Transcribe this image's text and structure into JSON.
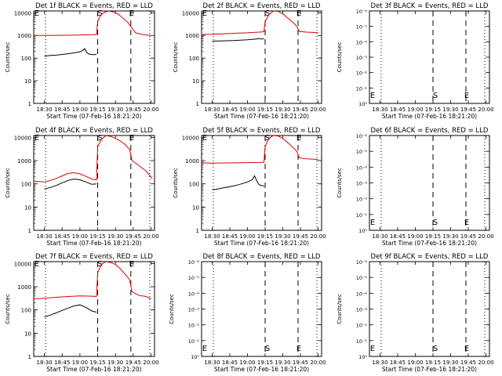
{
  "figure": {
    "colors": {
      "events": "#000000",
      "lld": "#dd0000",
      "axes": "#000000"
    },
    "time_ticks": [
      "18:30",
      "18:45",
      "19:00",
      "19:15",
      "19:30",
      "19:45",
      "20:00"
    ],
    "log_yticks": [
      "1",
      "10",
      "100",
      "1000",
      "10000"
    ],
    "tiny_yticks": [
      "10⁰",
      "10⁻¹",
      "10⁻²",
      "10⁻³",
      "10⁻⁴",
      "10⁻⁵",
      "10⁻⁶"
    ],
    "marker_labels": {
      "start": "E",
      "saa": "S",
      "end": "E"
    }
  },
  "chart_data": [
    {
      "type": "line",
      "detector": "1f",
      "title": "Det 1f BLACK = Events, RED = LLD",
      "xlabel": "Start Time (07-Feb-16 18:21:20)",
      "ylabel": "Counts/sec",
      "xlim": [
        "18:21",
        "20:03"
      ],
      "ylim": [
        1,
        12000
      ],
      "log_y": true,
      "empty": false,
      "markers": {
        "dotted": [
          "18:31",
          "19:59"
        ],
        "dashed": [
          "19:15",
          "19:43"
        ]
      },
      "series": [
        {
          "name": "Events",
          "color": "black",
          "x": [
            "18:30",
            "18:35",
            "18:40",
            "18:45",
            "18:50",
            "18:55",
            "19:00",
            "19:02",
            "19:04",
            "19:06",
            "19:08",
            "19:10",
            "19:12",
            "19:14"
          ],
          "y": [
            120,
            130,
            135,
            145,
            155,
            170,
            190,
            210,
            260,
            170,
            150,
            145,
            140,
            150
          ]
        },
        {
          "name": "LLD",
          "color": "red",
          "x": [
            "18:21",
            "18:30",
            "18:40",
            "18:50",
            "19:00",
            "19:05",
            "19:10",
            "19:14",
            "19:15",
            "19:17",
            "19:20",
            "19:24",
            "19:28",
            "19:32",
            "19:36",
            "19:40",
            "19:43",
            "19:47",
            "19:51",
            "19:56",
            "20:00"
          ],
          "y": [
            1000,
            1000,
            1010,
            1020,
            1050,
            1060,
            1080,
            1100,
            4000,
            7000,
            10000,
            12000,
            11000,
            9000,
            6000,
            4000,
            2500,
            1300,
            1150,
            1050,
            1000
          ]
        }
      ]
    },
    {
      "type": "line",
      "detector": "2f",
      "title": "Det 2f BLACK = Events, RED = LLD",
      "xlabel": "Start Time (07-Feb-16 18:21:20)",
      "ylabel": "Counts/sec",
      "xlim": [
        "18:21",
        "20:03"
      ],
      "ylim": [
        1,
        12000
      ],
      "log_y": true,
      "empty": false,
      "markers": {
        "dotted": [
          "18:31",
          "19:59"
        ],
        "dashed": [
          "19:15",
          "19:43"
        ]
      },
      "series": [
        {
          "name": "Events",
          "color": "black",
          "x": [
            "18:30",
            "18:40",
            "18:50",
            "19:00",
            "19:05",
            "19:08",
            "19:10",
            "19:12",
            "19:14"
          ],
          "y": [
            560,
            580,
            600,
            640,
            680,
            700,
            720,
            700,
            710
          ]
        },
        {
          "name": "LLD",
          "color": "red",
          "x": [
            "18:21",
            "18:30",
            "18:40",
            "18:50",
            "19:00",
            "19:05",
            "19:10",
            "19:14",
            "19:15",
            "19:18",
            "19:22",
            "19:26",
            "19:30",
            "19:34",
            "19:38",
            "19:42",
            "19:44",
            "19:50",
            "19:56",
            "20:00"
          ],
          "y": [
            1100,
            1120,
            1180,
            1250,
            1300,
            1350,
            1400,
            1450,
            4000,
            8000,
            12000,
            11500,
            9000,
            6000,
            4000,
            2500,
            1500,
            1400,
            1350,
            1300
          ]
        }
      ]
    },
    {
      "type": "line",
      "detector": "3f",
      "title": "Det 3f BLACK = Events, RED = LLD",
      "xlabel": "Start Time (07-Feb-16 18:21:20)",
      "ylabel": "Counts/sec",
      "xlim": [
        "18:21",
        "20:03"
      ],
      "ylim": [
        1e-06,
        1
      ],
      "log_y": true,
      "empty": true,
      "markers": {
        "dotted": [
          "18:31",
          "19:59"
        ],
        "dashed": [
          "19:15",
          "19:43"
        ]
      },
      "series": []
    },
    {
      "type": "line",
      "detector": "4f",
      "title": "Det 4f BLACK = Events, RED = LLD",
      "xlabel": "Start Time (07-Feb-16 18:21:20)",
      "ylabel": "Counts/sec",
      "xlim": [
        "18:21",
        "20:03"
      ],
      "ylim": [
        1,
        12000
      ],
      "log_y": true,
      "empty": false,
      "markers": {
        "dotted": [
          "18:31",
          "19:59"
        ],
        "dashed": [
          "19:15",
          "19:43"
        ]
      },
      "series": [
        {
          "name": "Events",
          "color": "black",
          "x": [
            "18:30",
            "18:35",
            "18:40",
            "18:45",
            "18:50",
            "18:55",
            "19:00",
            "19:05",
            "19:10",
            "19:14"
          ],
          "y": [
            60,
            70,
            85,
            110,
            140,
            160,
            150,
            120,
            95,
            100
          ]
        },
        {
          "name": "LLD",
          "color": "red",
          "x": [
            "18:21",
            "18:30",
            "18:35",
            "18:40",
            "18:45",
            "18:50",
            "18:55",
            "19:00",
            "19:05",
            "19:10",
            "19:14",
            "19:15",
            "19:18",
            "19:22",
            "19:26",
            "19:30",
            "19:34",
            "19:38",
            "19:42",
            "19:44",
            "19:50",
            "19:56",
            "20:01"
          ],
          "y": [
            130,
            120,
            140,
            170,
            220,
            280,
            300,
            270,
            210,
            160,
            150,
            4000,
            8000,
            12000,
            11000,
            9000,
            7000,
            5000,
            3000,
            1000,
            600,
            350,
            170
          ]
        }
      ]
    },
    {
      "type": "line",
      "detector": "5f",
      "title": "Det 5f BLACK = Events, RED = LLD",
      "xlabel": "Start Time (07-Feb-16 18:21:20)",
      "ylabel": "Counts/sec",
      "xlim": [
        "18:21",
        "20:03"
      ],
      "ylim": [
        1,
        12000
      ],
      "log_y": true,
      "empty": false,
      "markers": {
        "dotted": [
          "18:31",
          "19:59"
        ],
        "dashed": [
          "19:15",
          "19:43"
        ]
      },
      "series": [
        {
          "name": "Events",
          "color": "black",
          "x": [
            "18:30",
            "18:35",
            "18:40",
            "18:45",
            "18:50",
            "18:55",
            "19:00",
            "19:04",
            "19:06",
            "19:08",
            "19:10",
            "19:14"
          ],
          "y": [
            55,
            60,
            68,
            75,
            85,
            100,
            120,
            150,
            220,
            130,
            90,
            80
          ]
        },
        {
          "name": "LLD",
          "color": "red",
          "x": [
            "18:21",
            "18:30",
            "18:40",
            "18:50",
            "19:00",
            "19:10",
            "19:14",
            "19:15",
            "19:18",
            "19:22",
            "19:26",
            "19:30",
            "19:34",
            "19:38",
            "19:42",
            "19:44",
            "19:50",
            "19:56",
            "20:00"
          ],
          "y": [
            800,
            780,
            790,
            800,
            820,
            830,
            850,
            4000,
            9000,
            12000,
            11500,
            9000,
            6000,
            4000,
            2500,
            1300,
            1200,
            1150,
            1100
          ]
        }
      ]
    },
    {
      "type": "line",
      "detector": "6f",
      "title": "Det 6f BLACK = Events, RED = LLD",
      "xlabel": "Start Time (07-Feb-16 18:21:20)",
      "ylabel": "Counts/sec",
      "xlim": [
        "18:21",
        "20:03"
      ],
      "ylim": [
        1e-06,
        1
      ],
      "log_y": true,
      "empty": true,
      "markers": {
        "dotted": [
          "18:31",
          "19:59"
        ],
        "dashed": [
          "19:15",
          "19:43"
        ]
      },
      "series": []
    },
    {
      "type": "line",
      "detector": "7f",
      "title": "Det 7f BLACK = Events, RED = LLD",
      "xlabel": "Start Time (07-Feb-16 18:21:20)",
      "ylabel": "Counts/sec",
      "xlim": [
        "18:21",
        "20:03"
      ],
      "ylim": [
        1,
        12000
      ],
      "log_y": true,
      "empty": false,
      "markers": {
        "dotted": [
          "18:31",
          "19:59"
        ],
        "dashed": [
          "19:15",
          "19:43"
        ]
      },
      "series": [
        {
          "name": "Events",
          "color": "black",
          "x": [
            "18:30",
            "18:35",
            "18:40",
            "18:45",
            "18:50",
            "18:55",
            "19:00",
            "19:05",
            "19:10",
            "19:14"
          ],
          "y": [
            50,
            60,
            75,
            95,
            120,
            150,
            165,
            130,
            90,
            80
          ]
        },
        {
          "name": "LLD",
          "color": "red",
          "x": [
            "18:21",
            "18:30",
            "18:40",
            "18:50",
            "19:00",
            "19:10",
            "19:14",
            "19:15",
            "19:18",
            "19:22",
            "19:26",
            "19:30",
            "19:34",
            "19:38",
            "19:42",
            "19:44",
            "19:50",
            "19:56",
            "20:00"
          ],
          "y": [
            300,
            320,
            350,
            380,
            400,
            390,
            380,
            4000,
            9000,
            12000,
            11000,
            9000,
            6000,
            3500,
            2000,
            600,
            420,
            380,
            300
          ]
        }
      ]
    },
    {
      "type": "line",
      "detector": "8f",
      "title": "Det 8f BLACK = Events, RED = LLD",
      "xlabel": "Start Time (07-Feb-16 18:21:20)",
      "ylabel": "Counts/sec",
      "xlim": [
        "18:21",
        "20:03"
      ],
      "ylim": [
        1e-06,
        1
      ],
      "log_y": true,
      "empty": true,
      "markers": {
        "dotted": [
          "18:31",
          "19:59"
        ],
        "dashed": [
          "19:15",
          "19:43"
        ]
      },
      "series": []
    },
    {
      "type": "line",
      "detector": "9f",
      "title": "Det 9f BLACK = Events, RED = LLD",
      "xlabel": "Start Time (07-Feb-16 18:21:20)",
      "ylabel": "Counts/sec",
      "xlim": [
        "18:21",
        "20:03"
      ],
      "ylim": [
        1e-06,
        1
      ],
      "log_y": true,
      "empty": true,
      "markers": {
        "dotted": [
          "18:31",
          "19:59"
        ],
        "dashed": [
          "19:15",
          "19:43"
        ]
      },
      "series": []
    }
  ]
}
